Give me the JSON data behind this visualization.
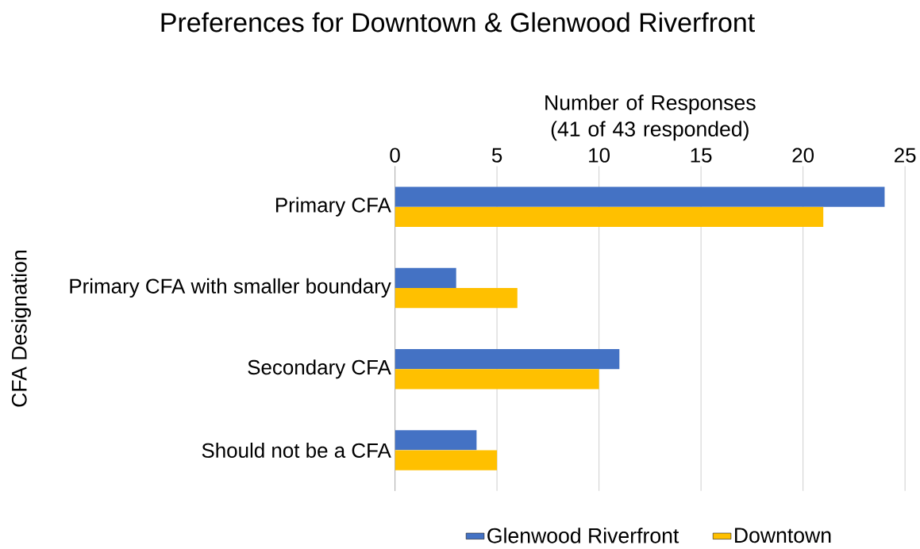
{
  "chart_data": {
    "type": "bar",
    "orientation": "horizontal",
    "title": "Preferences for Downtown & Glenwood Riverfront",
    "xlabel": "Number of Responses (41 of 43 responded)",
    "ylabel": "CFA Designation",
    "categories": [
      "Primary CFA",
      "Primary CFA with smaller boundary",
      "Secondary CFA",
      "Should not be a CFA"
    ],
    "series": [
      {
        "name": "Glenwood Riverfront",
        "color": "#4472c4",
        "values": [
          24,
          3,
          11,
          4
        ]
      },
      {
        "name": "Downtown",
        "color": "#ffc000",
        "values": [
          21,
          6,
          10,
          5
        ]
      }
    ],
    "xlim": [
      0,
      25
    ],
    "xticks": [
      0,
      5,
      10,
      15,
      20,
      25
    ],
    "grid": "x",
    "legend": "bottom"
  }
}
